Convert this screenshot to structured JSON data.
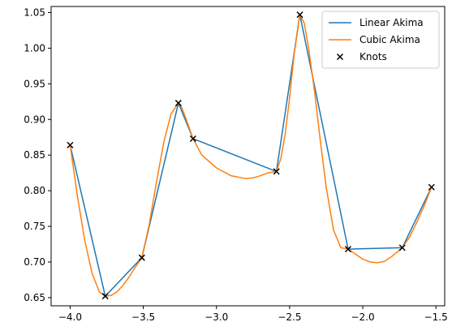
{
  "chart_data": {
    "type": "line",
    "title": "",
    "xlabel": "",
    "ylabel": "",
    "xlim": [
      -4.13,
      -1.44
    ],
    "ylim": [
      0.6385,
      1.0585
    ],
    "x_ticks": [
      -4.0,
      -3.5,
      -3.0,
      -2.5,
      -2.0,
      -1.5
    ],
    "x_tick_labels": [
      "−4.0",
      "−3.5",
      "−3.0",
      "−2.5",
      "−2.0",
      "−1.5"
    ],
    "y_ticks": [
      0.65,
      0.7,
      0.75,
      0.8,
      0.85,
      0.9,
      0.95,
      1.0,
      1.05
    ],
    "y_tick_labels": [
      "0.65",
      "0.70",
      "0.75",
      "0.80",
      "0.85",
      "0.90",
      "0.95",
      "1.00",
      "1.05"
    ],
    "grid": false,
    "legend_position": "top-right",
    "series": [
      {
        "name": "Linear Akima",
        "kind": "line",
        "color": "#1f77b4",
        "x": [
          -4.0,
          -3.76,
          -3.51,
          -3.26,
          -3.16,
          -2.59,
          -2.43,
          -2.1,
          -1.73,
          -1.53
        ],
        "y": [
          0.864,
          0.652,
          0.706,
          0.923,
          0.873,
          0.827,
          1.047,
          0.718,
          0.72,
          0.805
        ]
      },
      {
        "name": "Cubic Akima",
        "kind": "line",
        "color": "#ff7f0e",
        "x": [
          -4.0,
          -3.95,
          -3.9,
          -3.85,
          -3.8,
          -3.76,
          -3.72,
          -3.68,
          -3.64,
          -3.6,
          -3.56,
          -3.51,
          -3.46,
          -3.41,
          -3.36,
          -3.31,
          -3.26,
          -3.24,
          -3.21,
          -3.16,
          -3.1,
          -3.0,
          -2.9,
          -2.8,
          -2.75,
          -2.7,
          -2.65,
          -2.62,
          -2.59,
          -2.56,
          -2.53,
          -2.5,
          -2.47,
          -2.43,
          -2.4,
          -2.37,
          -2.33,
          -2.29,
          -2.25,
          -2.2,
          -2.15,
          -2.1,
          -2.05,
          -2.0,
          -1.95,
          -1.9,
          -1.85,
          -1.8,
          -1.73,
          -1.68,
          -1.63,
          -1.58,
          -1.53
        ],
        "y": [
          0.864,
          0.792,
          0.73,
          0.684,
          0.658,
          0.652,
          0.653,
          0.658,
          0.667,
          0.678,
          0.691,
          0.706,
          0.752,
          0.812,
          0.868,
          0.908,
          0.923,
          0.918,
          0.902,
          0.873,
          0.85,
          0.832,
          0.821,
          0.817,
          0.818,
          0.821,
          0.825,
          0.826,
          0.827,
          0.845,
          0.88,
          0.93,
          0.99,
          1.047,
          1.035,
          1.0,
          0.94,
          0.87,
          0.805,
          0.745,
          0.72,
          0.718,
          0.711,
          0.704,
          0.7,
          0.699,
          0.701,
          0.708,
          0.72,
          0.735,
          0.756,
          0.779,
          0.805
        ]
      },
      {
        "name": "Knots",
        "kind": "scatter",
        "marker": "x",
        "color": "#000000",
        "x": [
          -4.0,
          -3.76,
          -3.51,
          -3.26,
          -3.16,
          -2.59,
          -2.43,
          -2.1,
          -1.73,
          -1.53
        ],
        "y": [
          0.864,
          0.652,
          0.706,
          0.923,
          0.873,
          0.827,
          1.047,
          0.718,
          0.72,
          0.805
        ]
      }
    ]
  }
}
